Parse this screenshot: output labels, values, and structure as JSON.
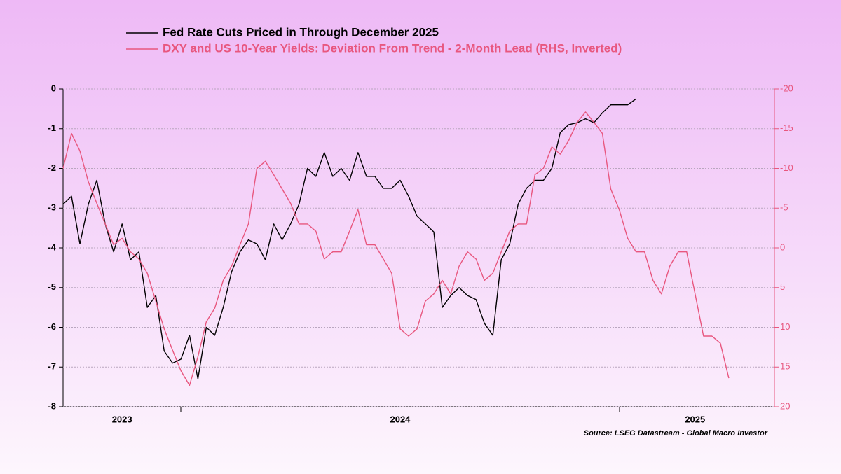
{
  "chart_data": {
    "type": "line",
    "legend": [
      "Fed Rate Cuts Priced in Through December 2025",
      "DXY and US 10-Year Yields: Deviation From Trend - 2-Month Lead (RHS, Inverted)"
    ],
    "source": "Source: LSEG Datastream - Global Macro Investor",
    "categories": [
      null,
      null,
      null,
      null,
      null,
      null,
      null,
      "2023",
      null,
      null,
      null,
      null,
      null,
      null,
      null,
      null,
      null,
      null,
      null,
      null,
      null,
      null,
      null,
      null,
      null,
      null,
      null,
      null,
      null,
      null,
      null,
      null,
      null,
      null,
      null,
      null,
      null,
      null,
      null,
      null,
      "2024",
      null,
      null,
      null,
      null,
      null,
      null,
      null,
      null,
      null,
      null,
      null,
      null,
      null,
      null,
      null,
      null,
      null,
      null,
      null,
      null,
      null,
      null,
      null,
      null,
      null,
      null,
      null,
      null,
      null,
      null,
      null,
      null,
      null,
      null,
      "2025",
      null,
      null,
      null,
      null,
      null,
      null,
      null,
      null,
      null
    ],
    "series": [
      {
        "name": "Fed Rate Cuts Priced in Through December 2025",
        "color": "#000000",
        "axis": "y",
        "values": [
          -2.9,
          -2.7,
          -3.9,
          -2.9,
          -2.3,
          -3.4,
          -4.1,
          -3.4,
          -4.3,
          -4.1,
          -5.5,
          -5.2,
          -6.6,
          -6.9,
          -6.8,
          -6.2,
          -7.3,
          -6.0,
          -6.2,
          -5.5,
          -4.6,
          -4.1,
          -3.8,
          -3.9,
          -4.3,
          -3.4,
          -3.8,
          -3.4,
          -2.9,
          -2.0,
          -2.2,
          -1.6,
          -2.2,
          -2.0,
          -2.3,
          -1.6,
          -2.2,
          -2.2,
          -2.5,
          -2.5,
          -2.3,
          -2.7,
          -3.2,
          -3.4,
          -3.6,
          -5.5,
          -5.2,
          -5.0,
          -5.2,
          -5.3,
          -5.9,
          -6.2,
          -4.3,
          -3.9,
          -2.9,
          -2.5,
          -2.3,
          -2.3,
          -2.0,
          -1.1,
          -0.9,
          -0.85,
          -0.75,
          -0.85,
          -0.6,
          -0.4,
          -0.4,
          -0.4,
          -0.25,
          null,
          null,
          null,
          null,
          null,
          null,
          null,
          null,
          null,
          null,
          null,
          null,
          null,
          null,
          null,
          null
        ]
      },
      {
        "name": "DXY and US 10-Year Yields: Deviation From Trend - 2-Month Lead (RHS, Inverted)",
        "color": "#e8577f",
        "axis": "y2",
        "values": [
          -10.0,
          -14.4,
          -12.2,
          -8.3,
          -5.6,
          -3.0,
          -0.4,
          -1.2,
          0.5,
          1.4,
          3.2,
          6.7,
          10.2,
          12.9,
          15.5,
          17.3,
          13.7,
          9.3,
          7.6,
          4.1,
          2.3,
          -0.4,
          -3.0,
          -10.0,
          -10.9,
          -9.2,
          -7.4,
          -5.6,
          -3.0,
          -3.0,
          -2.1,
          1.4,
          0.5,
          0.5,
          -2.1,
          -4.8,
          -0.4,
          -0.4,
          1.4,
          3.2,
          10.2,
          11.1,
          10.2,
          6.7,
          5.8,
          4.1,
          5.8,
          2.3,
          0.5,
          1.4,
          4.1,
          3.2,
          0.5,
          -2.1,
          -3.0,
          -3.0,
          -9.2,
          -10.0,
          -12.7,
          -11.8,
          -13.5,
          -15.8,
          -17.1,
          -15.8,
          -14.4,
          -7.4,
          -4.8,
          -1.2,
          0.5,
          0.5,
          4.1,
          5.8,
          2.3,
          0.5,
          0.5,
          5.8,
          11.1,
          11.1,
          12.0,
          16.4,
          null,
          null,
          null,
          null,
          null
        ]
      }
    ],
    "ylim": [
      -8,
      0
    ],
    "yticks": [
      0,
      -1,
      -2,
      -3,
      -4,
      -5,
      -6,
      -7,
      -8
    ],
    "y2lim": [
      -20,
      20
    ],
    "y2ticks": [
      -20,
      -15,
      -10,
      -5,
      0,
      5,
      10,
      15,
      20
    ],
    "y2_inverted": true,
    "grid": true
  }
}
